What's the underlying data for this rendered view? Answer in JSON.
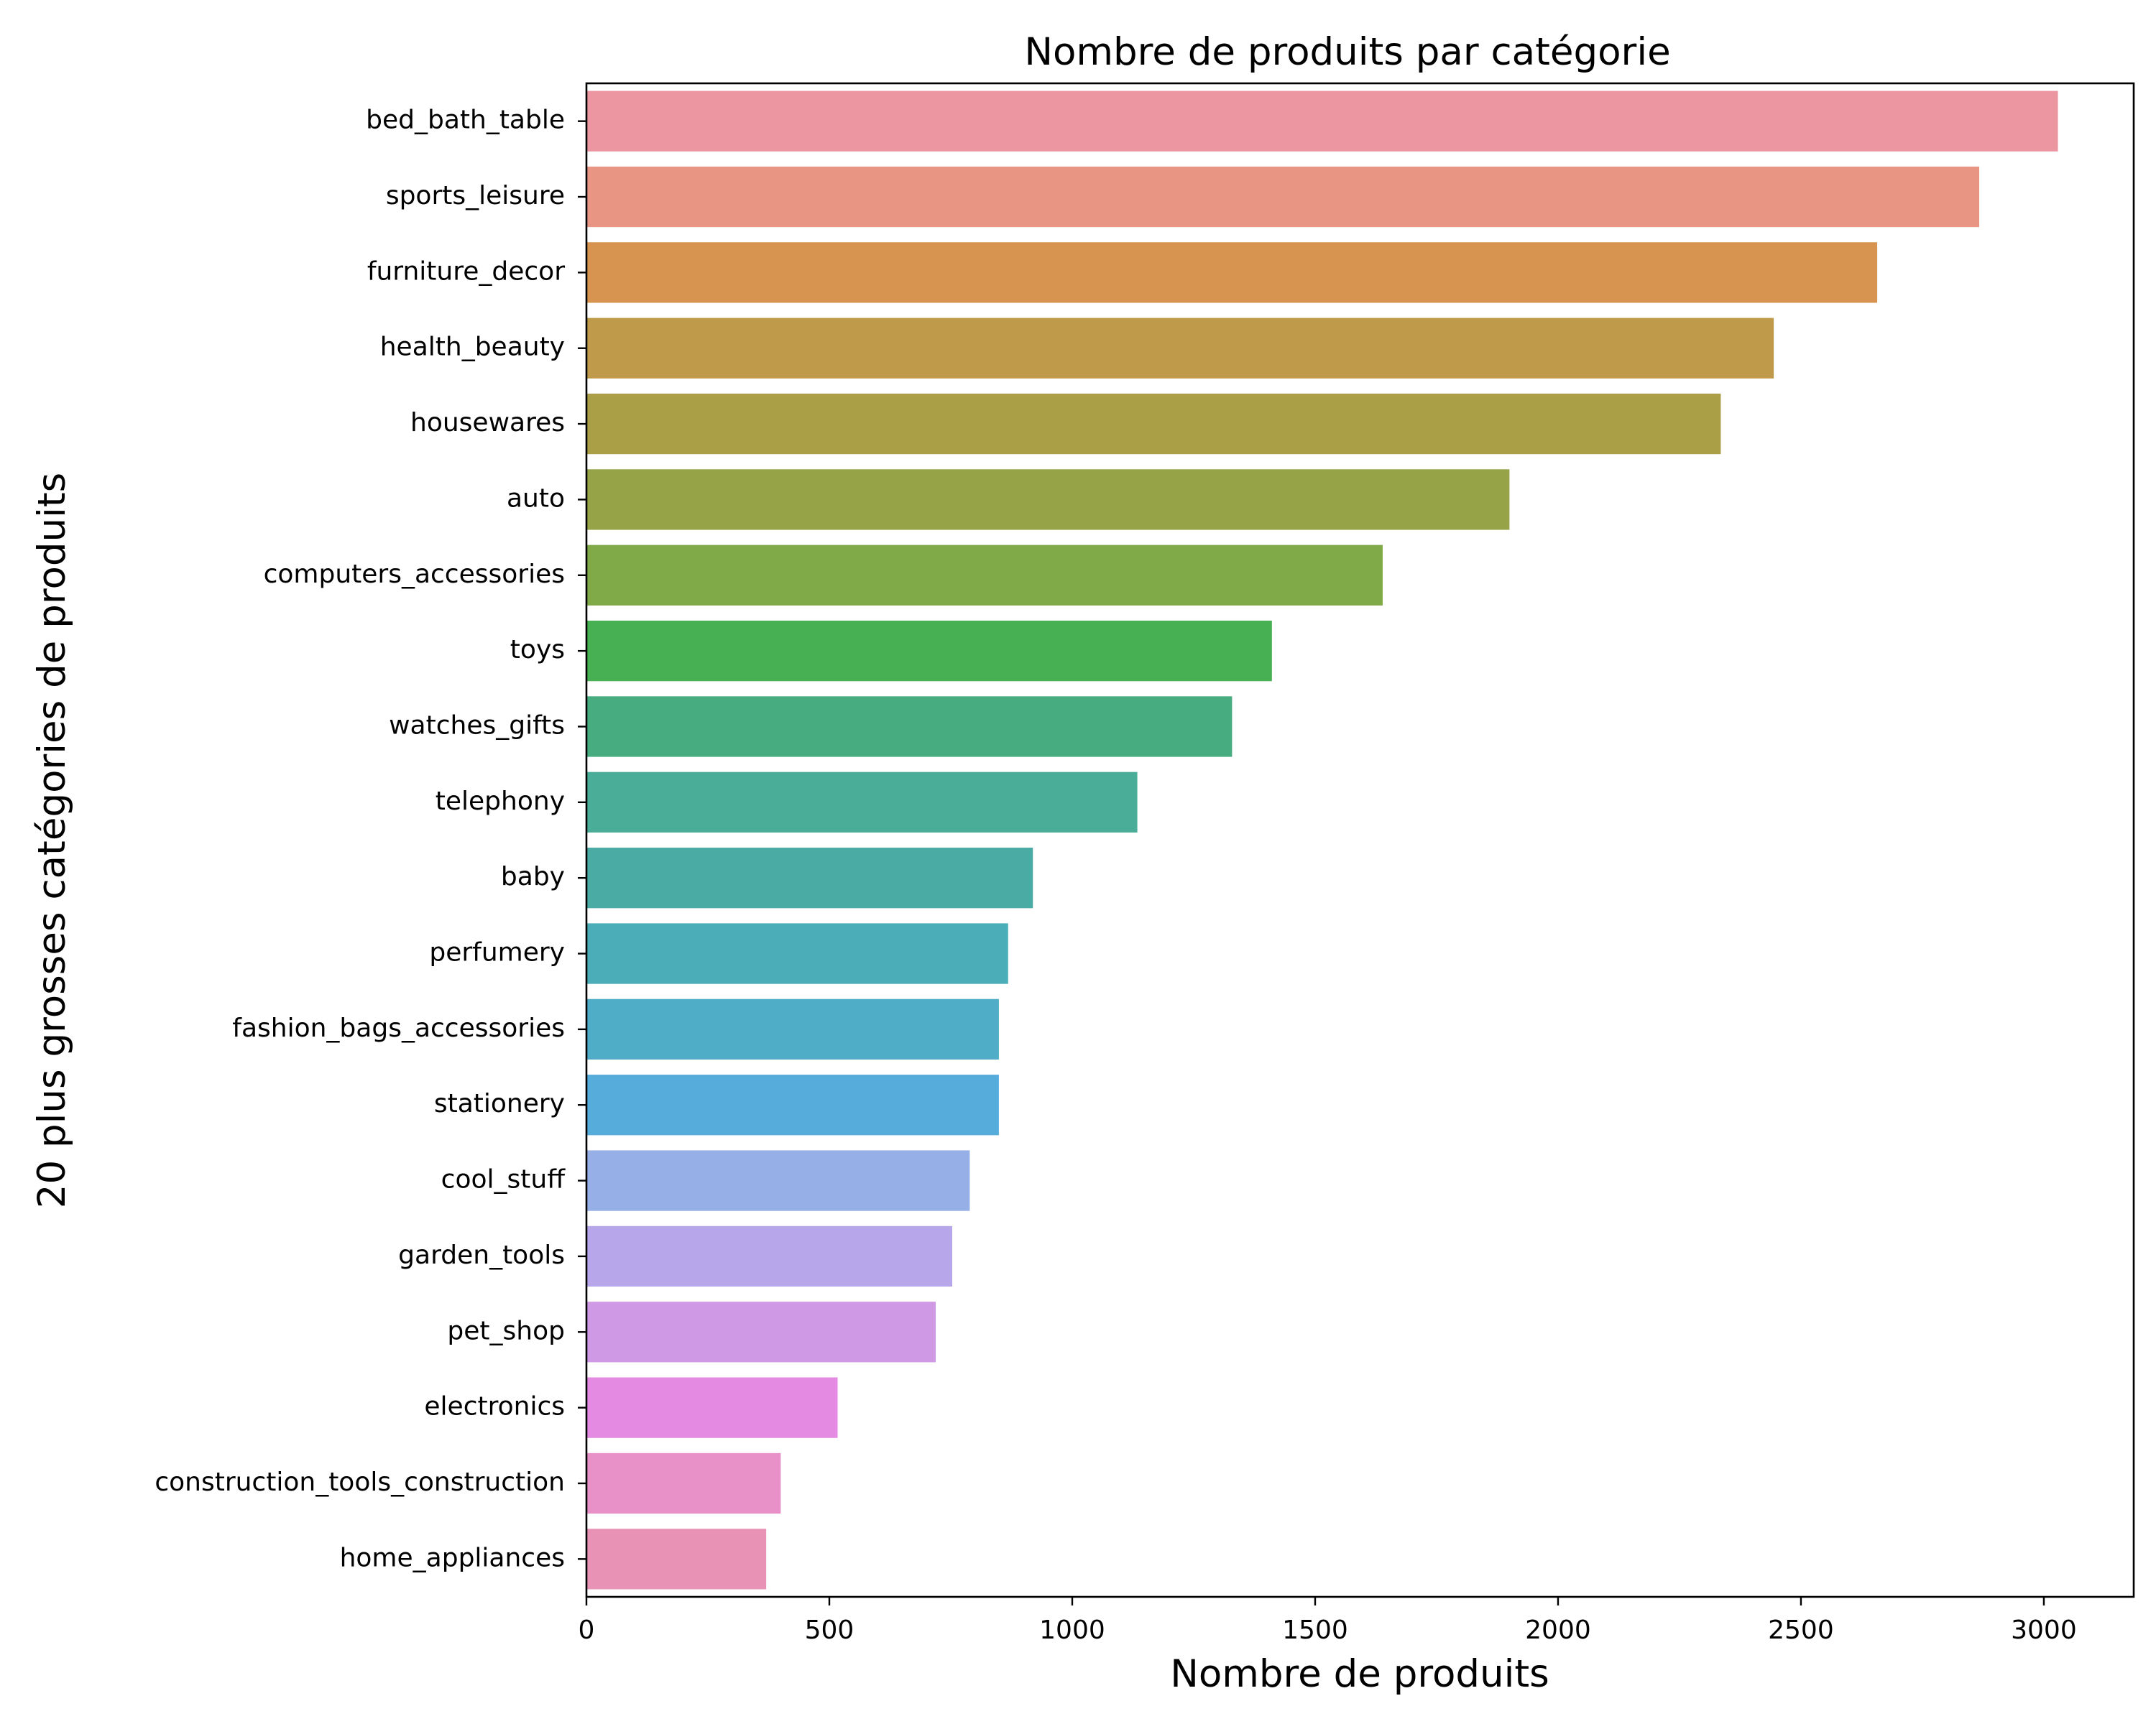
{
  "chart_data": {
    "type": "bar",
    "orientation": "horizontal",
    "title": "Nombre de produits par catégorie",
    "xlabel": "Nombre de produits",
    "ylabel": "20 plus grosses catégories de produits",
    "xlim": [
      0,
      3185
    ],
    "xticks": [
      0,
      500,
      1000,
      1500,
      2000,
      2500,
      3000
    ],
    "xtick_labels": [
      "0",
      "500",
      "1000",
      "1500",
      "2000",
      "2500",
      "3000"
    ],
    "grid": false,
    "categories": [
      "bed_bath_table",
      "sports_leisure",
      "furniture_decor",
      "health_beauty",
      "housewares",
      "auto",
      "computers_accessories",
      "toys",
      "watches_gifts",
      "telephony",
      "baby",
      "perfumery",
      "fashion_bags_accessories",
      "stationery",
      "cool_stuff",
      "garden_tools",
      "pet_shop",
      "electronics",
      "construction_tools_construction",
      "home_appliances"
    ],
    "values": [
      3029,
      2867,
      2657,
      2444,
      2335,
      1900,
      1639,
      1411,
      1329,
      1134,
      919,
      868,
      849,
      849,
      789,
      753,
      719,
      517,
      400,
      370
    ],
    "colors": [
      "#ec96a1",
      "#e89683",
      "#d69450",
      "#bf9a4b",
      "#aa9e47",
      "#96a347",
      "#7faa47",
      "#47b052",
      "#47ac80",
      "#49ad98",
      "#4aaaa4",
      "#4aadb7",
      "#4fadc7",
      "#56acdb",
      "#96afe7",
      "#b7a7ea",
      "#cf99e6",
      "#e58ae3",
      "#e891c9",
      "#e893b5"
    ]
  }
}
